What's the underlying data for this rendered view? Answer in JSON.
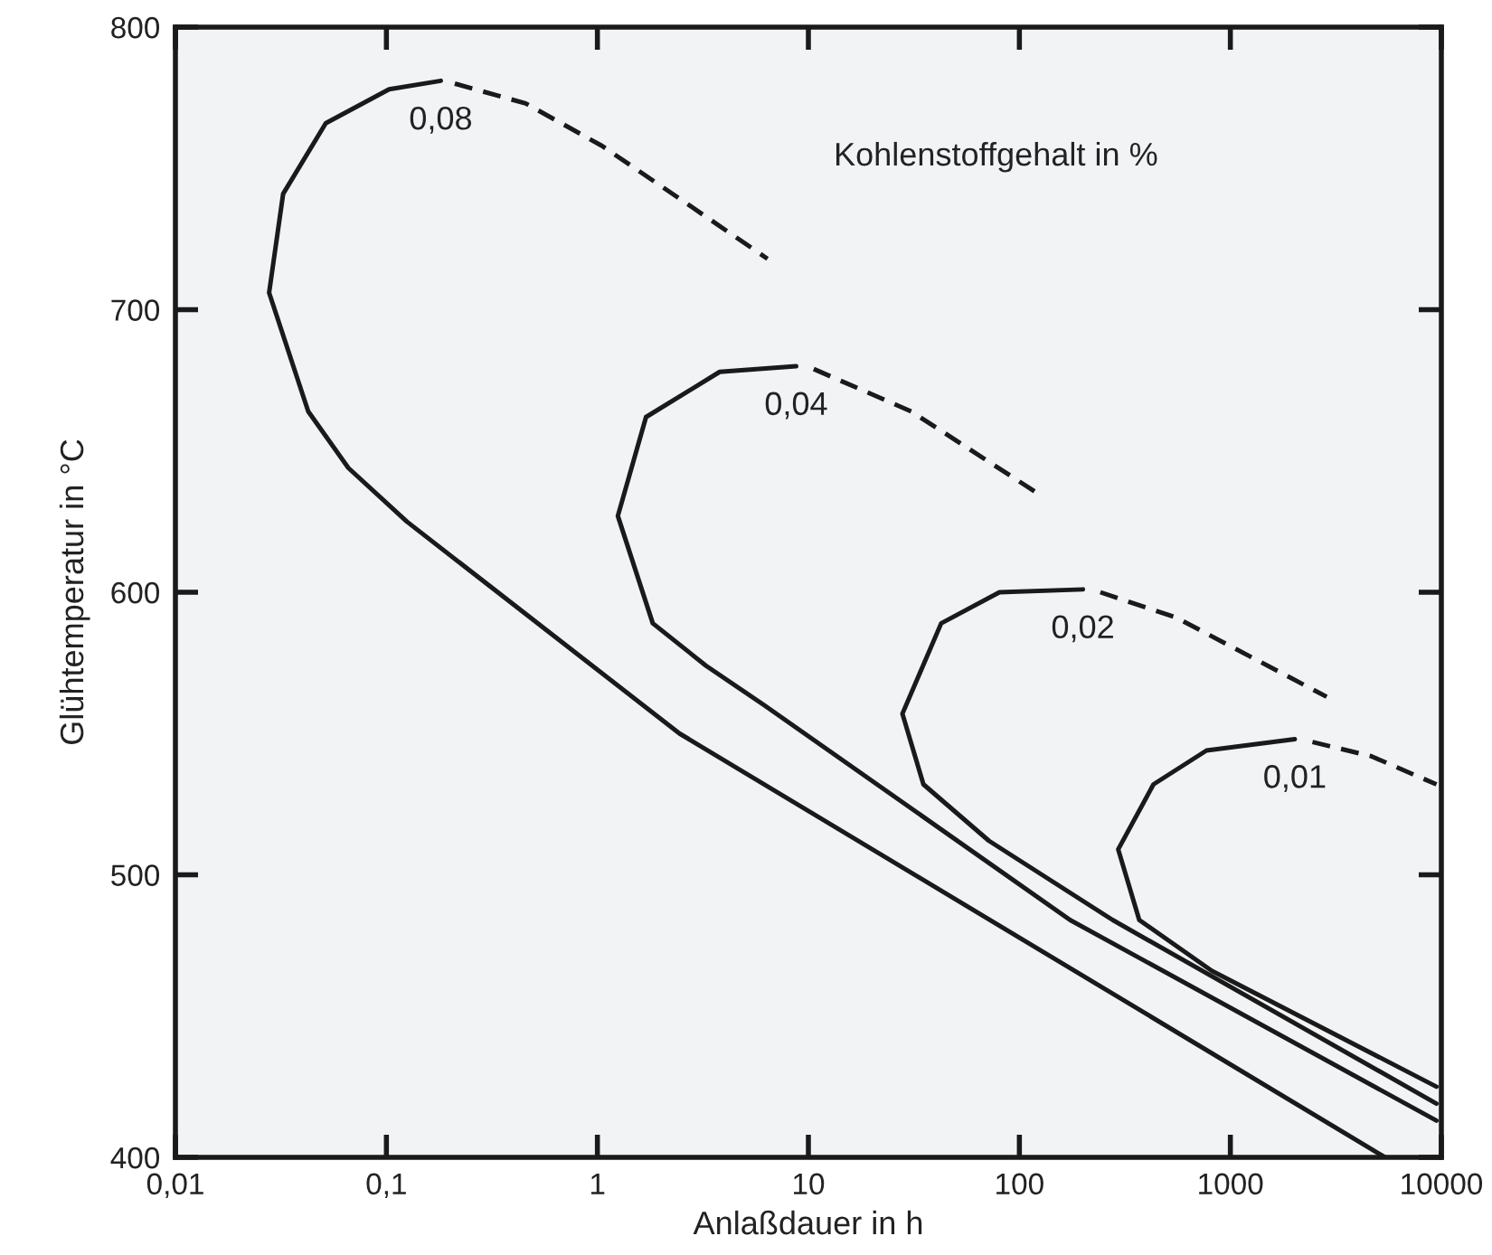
{
  "chart_data": {
    "type": "line",
    "xlabel": "Anlaßdauer in h",
    "ylabel": "Glühtemperatur in °C",
    "log": "x",
    "grid": false,
    "xlim": [
      0.01,
      10000
    ],
    "xticks": [
      {
        "value": 0.01,
        "label": "0,01"
      },
      {
        "value": 0.1,
        "label": "0,1"
      },
      1,
      10,
      100,
      1000,
      10000
    ],
    "ylim": [
      400,
      800
    ],
    "yticks": [
      400,
      500,
      600,
      700,
      800
    ],
    "series": [
      {
        "name": "0,08",
        "color": "#1a1a1a",
        "line_style": "solid",
        "x": [
          5410,
          2.45,
          0.125,
          0.066,
          0.0426,
          0.0278,
          0.0324,
          0.0516,
          0.103,
          0.181
        ],
        "values": [
          400,
          550,
          625,
          644,
          664,
          706,
          741,
          766,
          778,
          781
        ]
      },
      {
        "color": "#1a1a1a",
        "line_style": "dashed",
        "x": [
          0.211,
          0.457,
          1.05,
          2.6,
          6.4
        ],
        "values": [
          780,
          773,
          758,
          738,
          718
        ]
      },
      {
        "name": "0,04",
        "color": "#1a1a1a",
        "line_style": "solid",
        "x": [
          9480,
          174,
          6.18,
          3.27,
          1.83,
          1.25,
          1.7,
          3.8,
          8.75
        ],
        "values": [
          413,
          484,
          560,
          574,
          589,
          627,
          662,
          678,
          680
        ]
      },
      {
        "color": "#1a1a1a",
        "line_style": "dashed",
        "x": [
          10.6,
          30.7,
          128
        ],
        "values": [
          679,
          664,
          634
        ]
      },
      {
        "name": "0,02",
        "color": "#1a1a1a",
        "line_style": "solid",
        "x": [
          9480,
          277,
          71.8,
          35.1,
          27.9,
          42.6,
          80.5,
          200
        ],
        "values": [
          419,
          484,
          512,
          532,
          557,
          589,
          600,
          601
        ]
      },
      {
        "color": "#1a1a1a",
        "line_style": "dashed",
        "x": [
          242,
          555,
          2860
        ],
        "values": [
          600,
          591,
          563
        ]
      },
      {
        "name": "0,01",
        "color": "#1a1a1a",
        "line_style": "solid",
        "x": [
          9480,
          817,
          370,
          294,
          432,
          771,
          2020
        ],
        "values": [
          425,
          466,
          484,
          509,
          532,
          544,
          548
        ]
      },
      {
        "color": "#1a1a1a",
        "line_style": "dashed",
        "x": [
          2450,
          4640,
          9480
        ],
        "values": [
          547,
          542,
          532
        ]
      }
    ],
    "annotations": [
      "Kohlenstoffgehalt in %"
    ]
  }
}
